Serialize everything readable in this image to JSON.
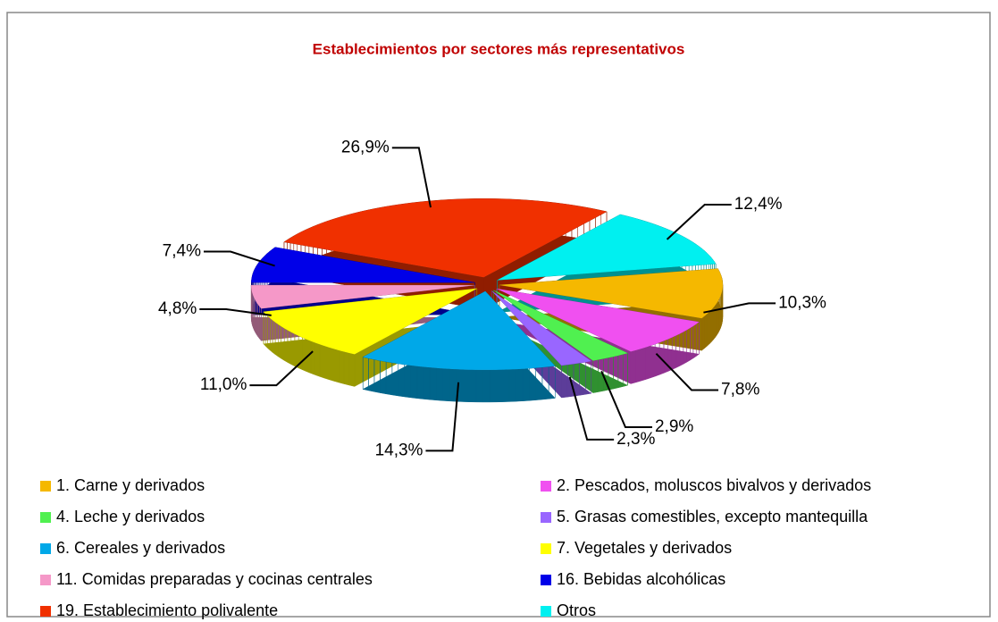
{
  "chart_data": {
    "type": "pie",
    "title": "Establecimientos por sectores más representativos",
    "categories": [
      "1. Carne y derivados",
      "2. Pescados, moluscos bivalvos y derivados",
      "4. Leche y derivados",
      "5. Grasas comestibles, excepto mantequilla",
      "6. Cereales y derivados",
      "7. Vegetales y derivados",
      "11. Comidas preparadas y cocinas centrales",
      "16. Bebidas alcohólicas",
      "19. Establecimiento polivalente",
      "Otros"
    ],
    "values": [
      10.3,
      7.8,
      2.9,
      2.3,
      14.3,
      11.0,
      4.8,
      7.4,
      26.9,
      12.4
    ],
    "value_labels": [
      "10,3%",
      "7,8%",
      "2,9%",
      "2,3%",
      "14,3%",
      "11,0%",
      "4,8%",
      "7,4%",
      "26,9%",
      "12,4%"
    ],
    "colors": [
      "#f5b800",
      "#f050f0",
      "#50f050",
      "#9966ff",
      "#00a8e8",
      "#ffff00",
      "#f598c8",
      "#0000e8",
      "#f03000",
      "#00f0f0"
    ]
  }
}
